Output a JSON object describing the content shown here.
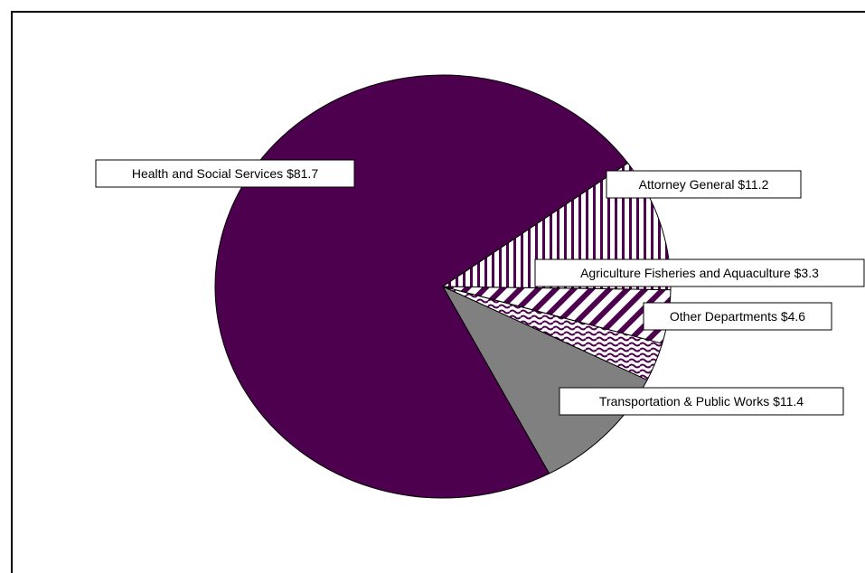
{
  "chart_data": {
    "type": "pie",
    "title": "",
    "slices": [
      {
        "label": "Health and Social Services $81.7",
        "value": 81.7,
        "fill": "#4d004d",
        "pattern": "solid"
      },
      {
        "label": "Attorney General $11.2",
        "value": 11.2,
        "fill": "#808080",
        "pattern": "solid"
      },
      {
        "label": "Agriculture Fisheries and Aquaculture $3.3",
        "value": 3.3,
        "fill": "#4d004d",
        "pattern": "wave"
      },
      {
        "label": "Other Departments $4.6",
        "value": 4.6,
        "fill": "#4d004d",
        "pattern": "diagonal"
      },
      {
        "label": "Transportation & Public Works $11.4",
        "value": 11.4,
        "fill": "#4d004d",
        "pattern": "vertical"
      }
    ]
  }
}
